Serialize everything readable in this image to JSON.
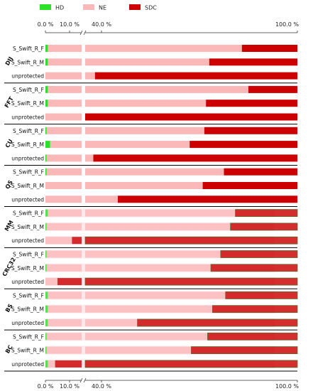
{
  "chart_data": {
    "type": "bar",
    "orientation": "horizontal-stacked-percent",
    "axis_break": {
      "from": 15,
      "to": 35
    },
    "x_ticks": [
      "0.0 %",
      "10.0 %",
      "40.0 %",
      "100.0 %"
    ],
    "x_tick_values": [
      0,
      10,
      40,
      100
    ],
    "xlim": [
      0,
      100
    ],
    "legend": {
      "position": "top-left",
      "entries": [
        "HD",
        "NE",
        "SDC"
      ]
    },
    "colors": {
      "HD": "#2ee02e",
      "NE": "#fbb8b8",
      "SDC": "#cc0000"
    },
    "groups": [
      {
        "name": "DIJ",
        "rows": [
          {
            "label": "S_Swift_R_F",
            "HD": 1,
            "NE": 82,
            "SDC": 17
          },
          {
            "label": "S_Swift_R_M",
            "HD": 1,
            "NE": 72,
            "SDC": 27
          },
          {
            "label": "unprotected",
            "HD": 0,
            "NE": 38,
            "SDC": 62
          }
        ]
      },
      {
        "name": "FFT",
        "rows": [
          {
            "label": "S_Swift_R_F",
            "HD": 1,
            "NE": 84,
            "SDC": 15
          },
          {
            "label": "S_Swift_R_M",
            "HD": 1,
            "NE": 71,
            "SDC": 28
          },
          {
            "label": "unprotected",
            "HD": 0,
            "NE": 22,
            "SDC": 78
          }
        ]
      },
      {
        "name": "CU",
        "rows": [
          {
            "label": "S_Swift_R_F",
            "HD": 0.5,
            "NE": 71,
            "SDC": 28.5
          },
          {
            "label": "S_Swift_R_M",
            "HD": 2,
            "NE": 65,
            "SDC": 33
          },
          {
            "label": "unprotected",
            "HD": 0.5,
            "NE": 37,
            "SDC": 62.5
          }
        ]
      },
      {
        "name": "QS",
        "rows": [
          {
            "label": "S_Swift_R_F",
            "HD": 0.5,
            "NE": 77,
            "SDC": 22.5
          },
          {
            "label": "S_Swift_R_M",
            "HD": 0,
            "NE": 71,
            "SDC": 29
          },
          {
            "label": "unprotected",
            "HD": 0,
            "NE": 45,
            "SDC": 55
          }
        ]
      },
      {
        "name": "MM",
        "rows": [
          {
            "label": "S_Swift_R_F",
            "HD": 1,
            "NE": 80,
            "SDC": 19
          },
          {
            "label": "S_Swift_R_M",
            "HD": 0.5,
            "NE": 79,
            "SDC": 20.5
          },
          {
            "label": "unprotected",
            "HD": 0,
            "NE": 11,
            "SDC": 89
          }
        ]
      },
      {
        "name": "CRC32",
        "rows": [
          {
            "label": "S_Swift_R_F",
            "HD": 0.5,
            "NE": 76,
            "SDC": 23.5
          },
          {
            "label": "S_Swift_R_M",
            "HD": 0.5,
            "NE": 73,
            "SDC": 26.5
          },
          {
            "label": "unprotected",
            "HD": 0,
            "NE": 5,
            "SDC": 95
          }
        ]
      },
      {
        "name": "BS",
        "rows": [
          {
            "label": "S_Swift_R_F",
            "HD": 1,
            "NE": 77,
            "SDC": 22
          },
          {
            "label": "S_Swift_R_M",
            "HD": 1,
            "NE": 73,
            "SDC": 26
          },
          {
            "label": "unprotected",
            "HD": 1,
            "NE": 50,
            "SDC": 49
          }
        ]
      },
      {
        "name": "BC",
        "rows": [
          {
            "label": "S_Swift_R_F",
            "HD": 0.5,
            "NE": 72,
            "SDC": 27.5
          },
          {
            "label": "S_Swift_R_M",
            "HD": 0.5,
            "NE": 67,
            "SDC": 32.5
          },
          {
            "label": "unprotected",
            "HD": 1,
            "NE": 3,
            "SDC": 96
          }
        ]
      }
    ]
  }
}
